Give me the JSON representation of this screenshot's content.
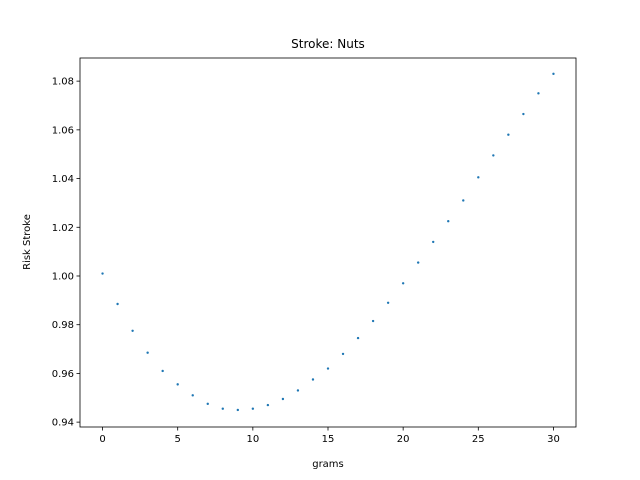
{
  "chart_data": {
    "type": "scatter",
    "title": "Stroke: Nuts",
    "xlabel": "grams",
    "ylabel": "Risk Stroke",
    "xlim": [
      -1.5,
      31.5
    ],
    "ylim": [
      0.938,
      1.0895
    ],
    "xticks": [
      0,
      5,
      10,
      15,
      20,
      25,
      30
    ],
    "xtick_labels": [
      "0",
      "5",
      "10",
      "15",
      "20",
      "25",
      "30"
    ],
    "yticks": [
      0.94,
      0.96,
      0.98,
      1.0,
      1.02,
      1.04,
      1.06,
      1.08
    ],
    "ytick_labels": [
      "0.94",
      "0.96",
      "0.98",
      "1.00",
      "1.02",
      "1.04",
      "1.06",
      "1.08"
    ],
    "grid": false,
    "marker_color": "#1f77b4",
    "series": [
      {
        "x": [
          0,
          1,
          2,
          3,
          4,
          5,
          6,
          7,
          8,
          9,
          10,
          11,
          12,
          13,
          14,
          15,
          16,
          17,
          18,
          19,
          20,
          21,
          22,
          23,
          24,
          25,
          26,
          27,
          28,
          29,
          30
        ],
        "y": [
          1.001,
          0.9885,
          0.9775,
          0.9685,
          0.961,
          0.9555,
          0.951,
          0.9475,
          0.9455,
          0.945,
          0.9455,
          0.947,
          0.9495,
          0.953,
          0.9575,
          0.962,
          0.968,
          0.9745,
          0.9815,
          0.989,
          0.997,
          1.0055,
          1.014,
          1.0225,
          1.031,
          1.0405,
          1.0495,
          1.058,
          1.0665,
          1.075,
          1.083
        ]
      }
    ]
  }
}
